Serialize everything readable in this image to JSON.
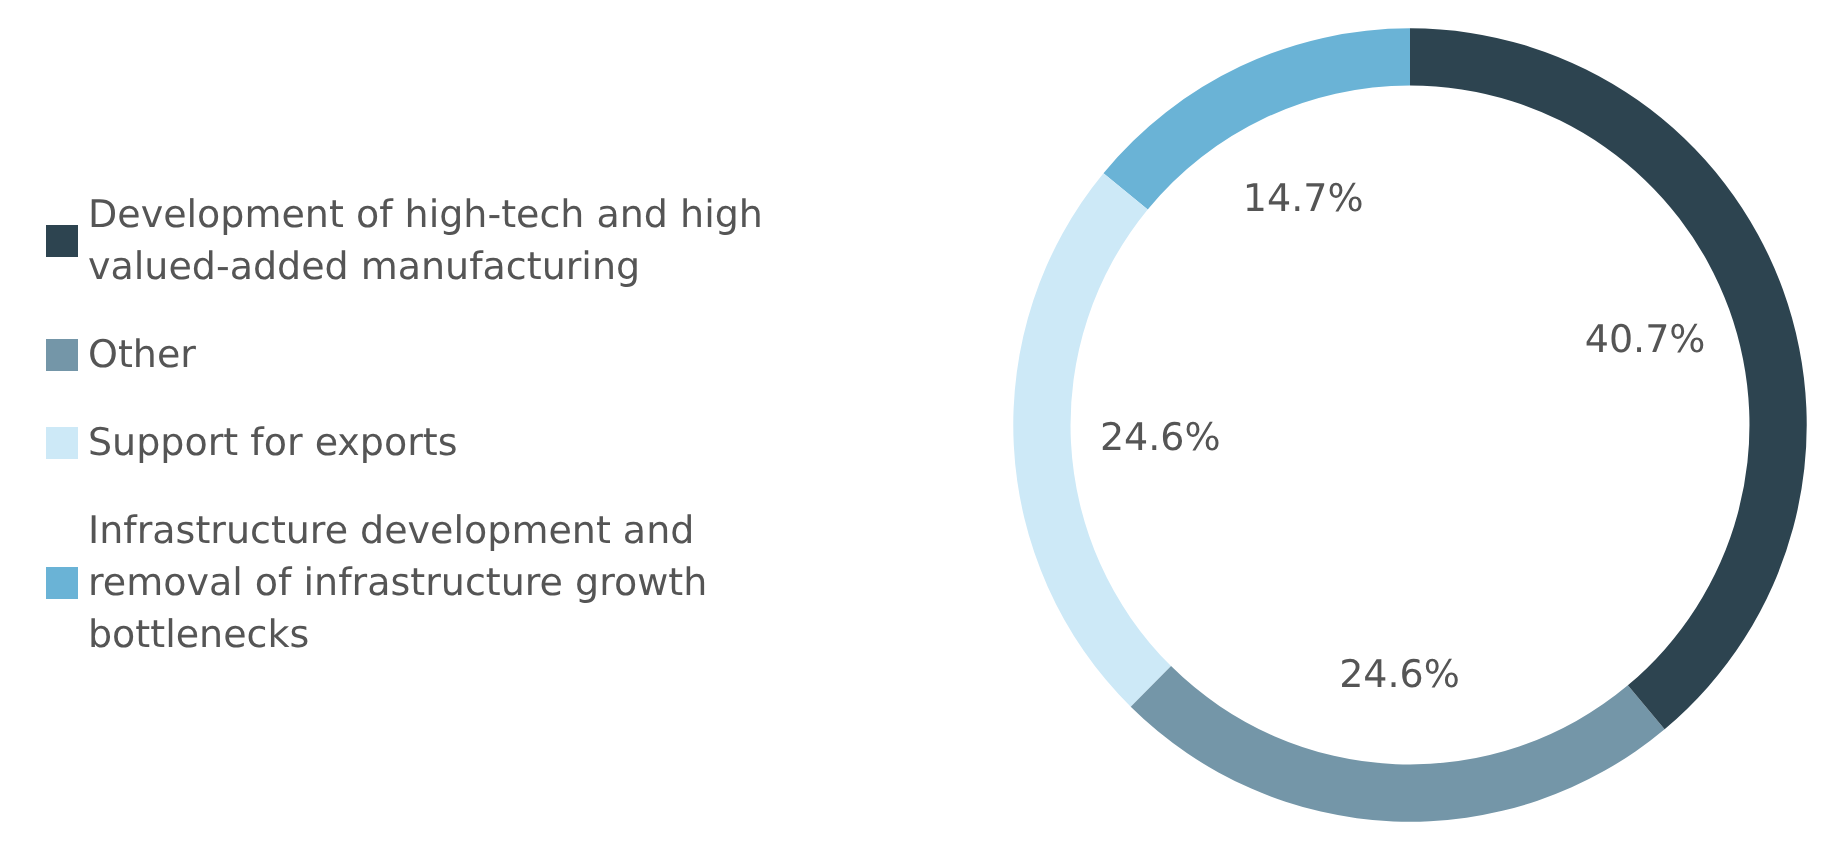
{
  "chart_data": {
    "type": "donut",
    "categories": [
      "Development of high-tech and high valued-added manufacturing",
      "Other",
      "Support for exports",
      "Infrastructure development and removal of infrastructure growth bottlenecks"
    ],
    "values": [
      40.7,
      24.6,
      24.6,
      14.7
    ],
    "colors": [
      "#2d4450",
      "#7496a8",
      "#cde9f7",
      "#6ab3d6"
    ],
    "value_labels": [
      "40.7%",
      "24.6%",
      "24.6%",
      "14.7%"
    ],
    "legend": "left"
  }
}
